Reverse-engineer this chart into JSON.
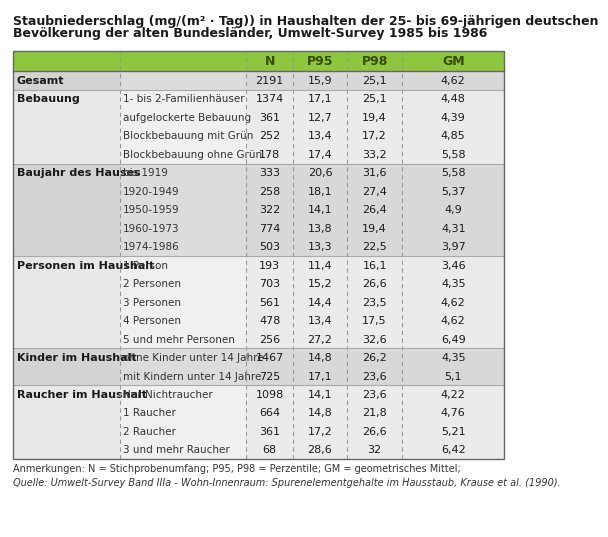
{
  "title_line1": "Staubniederschlag (mg/(m² · Tag)) in Haushalten der 25- bis 69-jährigen deutschen",
  "title_line2": "Bevölkerung der alten Bundesländer, Umwelt-Survey 1985 bis 1986",
  "col_headers": [
    "N",
    "P95",
    "P98",
    "GM"
  ],
  "footnote1": "Anmerkungen: N = Stichprobenumfang; P95, P98 = Perzentile; GM = geometrisches Mittel;",
  "footnote2": "Quelle: Umwelt-Survey Band IIIa - Wohn-Innenraum: Spurenelementgehalte im Hausstaub, Krause et al. (1990).",
  "rows": [
    {
      "group": "Gesamt",
      "subcat": "",
      "N": "2191",
      "P95": "15,9",
      "P98": "25,1",
      "GM": "4,62"
    },
    {
      "group": "Bebauung",
      "subcat": "1- bis 2-Familienhäuser",
      "N": "1374",
      "P95": "17,1",
      "P98": "25,1",
      "GM": "4,48"
    },
    {
      "group": "",
      "subcat": "aufgelockerte Bebauung",
      "N": "361",
      "P95": "12,7",
      "P98": "19,4",
      "GM": "4,39"
    },
    {
      "group": "",
      "subcat": "Blockbebauung mit Grün",
      "N": "252",
      "P95": "13,4",
      "P98": "17,2",
      "GM": "4,85"
    },
    {
      "group": "",
      "subcat": "Blockbebauung ohne Grün",
      "N": "178",
      "P95": "17,4",
      "P98": "33,2",
      "GM": "5,58"
    },
    {
      "group": "Baujahr des Hauses",
      "subcat": "bis 1919",
      "N": "333",
      "P95": "20,6",
      "P98": "31,6",
      "GM": "5,58"
    },
    {
      "group": "",
      "subcat": "1920-1949",
      "N": "258",
      "P95": "18,1",
      "P98": "27,4",
      "GM": "5,37"
    },
    {
      "group": "",
      "subcat": "1950-1959",
      "N": "322",
      "P95": "14,1",
      "P98": "26,4",
      "GM": "4,9"
    },
    {
      "group": "",
      "subcat": "1960-1973",
      "N": "774",
      "P95": "13,8",
      "P98": "19,4",
      "GM": "4,31"
    },
    {
      "group": "",
      "subcat": "1974-1986",
      "N": "503",
      "P95": "13,3",
      "P98": "22,5",
      "GM": "3,97"
    },
    {
      "group": "Personen im Haushalt",
      "subcat": "1 Person",
      "N": "193",
      "P95": "11,4",
      "P98": "16,1",
      "GM": "3,46"
    },
    {
      "group": "",
      "subcat": "2 Personen",
      "N": "703",
      "P95": "15,2",
      "P98": "26,6",
      "GM": "4,35"
    },
    {
      "group": "",
      "subcat": "3 Personen",
      "N": "561",
      "P95": "14,4",
      "P98": "23,5",
      "GM": "4,62"
    },
    {
      "group": "",
      "subcat": "4 Personen",
      "N": "478",
      "P95": "13,4",
      "P98": "17,5",
      "GM": "4,62"
    },
    {
      "group": "",
      "subcat": "5 und mehr Personen",
      "N": "256",
      "P95": "27,2",
      "P98": "32,6",
      "GM": "6,49"
    },
    {
      "group": "Kinder im Haushalt",
      "subcat": "ohne Kinder unter 14 Jahre",
      "N": "1467",
      "P95": "14,8",
      "P98": "26,2",
      "GM": "4,35"
    },
    {
      "group": "",
      "subcat": "mit Kindern unter 14 Jahre",
      "N": "725",
      "P95": "17,1",
      "P98": "23,6",
      "GM": "5,1"
    },
    {
      "group": "Raucher im Haushalt",
      "subcat": "Nur Nichtraucher",
      "N": "1098",
      "P95": "14,1",
      "P98": "23,6",
      "GM": "4,22"
    },
    {
      "group": "",
      "subcat": "1 Raucher",
      "N": "664",
      "P95": "14,8",
      "P98": "21,8",
      "GM": "4,76"
    },
    {
      "group": "",
      "subcat": "2 Raucher",
      "N": "361",
      "P95": "17,2",
      "P98": "26,6",
      "GM": "5,21"
    },
    {
      "group": "",
      "subcat": "3 und mehr Raucher",
      "N": "68",
      "P95": "28,6",
      "P98": "32",
      "GM": "6,42"
    }
  ],
  "section_parities": [
    0,
    1,
    1,
    1,
    1,
    0,
    0,
    0,
    0,
    0,
    1,
    1,
    1,
    1,
    1,
    0,
    0,
    1,
    1,
    1,
    1
  ],
  "header_bg": "#8dc63f",
  "header_text_color": "#3a4a00",
  "bg_dark": "#d3d3d3",
  "bg_light": "#e8e8e8",
  "sub_dark": "#dcdcdc",
  "sub_light": "#f0f0f0",
  "data_dark": "#d8d8d8",
  "data_light": "#ebebeb",
  "border_color": "#666666",
  "dash_color": "#999999",
  "text_dark": "#1a1a1a",
  "text_mid": "#333333",
  "footnote_color": "#333333"
}
